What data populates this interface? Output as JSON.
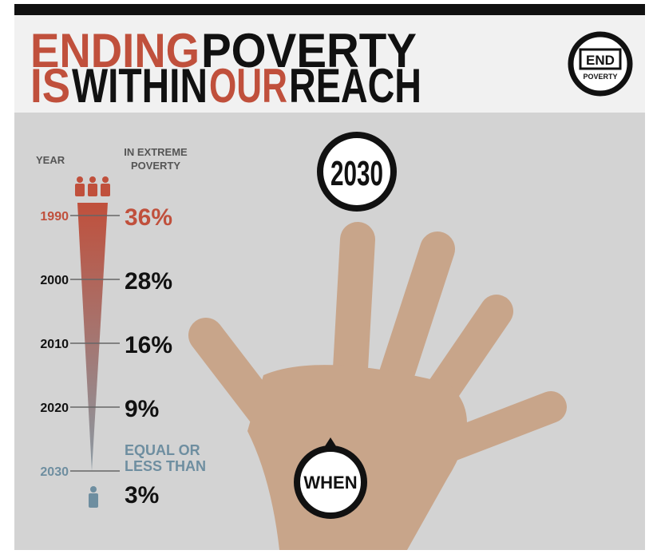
{
  "header": {
    "title": {
      "line1": [
        "ENDING",
        "POVERTY"
      ],
      "line2": [
        "IS",
        "WITHIN",
        "OUR",
        "REACH"
      ]
    },
    "logo": {
      "top": "END",
      "bottom": "POVERTY"
    }
  },
  "timeline": {
    "year_heading": "YEAR",
    "poverty_heading": [
      "IN EXTREME",
      "POVERTY"
    ],
    "rows": [
      {
        "year": "1990",
        "value": "36%"
      },
      {
        "year": "2000",
        "value": "28%"
      },
      {
        "year": "2010",
        "value": "16%"
      },
      {
        "year": "2020",
        "value": "9%"
      },
      {
        "year": "2030",
        "note": [
          "EQUAL OR",
          "LESS THAN"
        ],
        "value": "3%"
      }
    ]
  },
  "hand": {
    "target": "2030",
    "label": "WHEN"
  }
}
